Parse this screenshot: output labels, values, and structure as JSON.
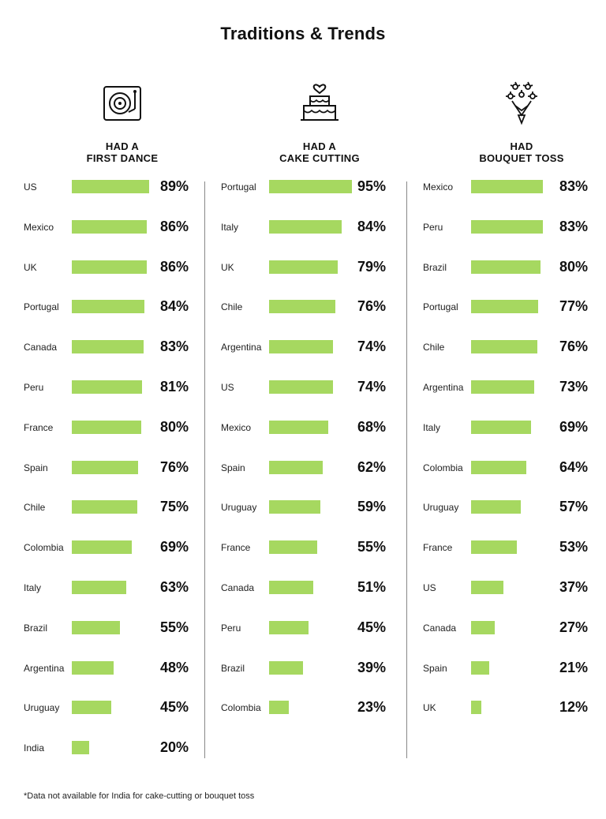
{
  "title": "Traditions & Trends",
  "footnote": "*Data not available for India for cake-cutting or bouquet toss",
  "chart_data": [
    {
      "type": "bar",
      "orientation": "horizontal",
      "icon": "turntable-icon",
      "heading": [
        "HAD A",
        "FIRST DANCE"
      ],
      "unit": "%",
      "xlim": [
        0,
        100
      ],
      "categories": [
        "US",
        "Mexico",
        "UK",
        "Portugal",
        "Canada",
        "Peru",
        "France",
        "Spain",
        "Chile",
        "Colombia",
        "Italy",
        "Brazil",
        "Argentina",
        "Uruguay",
        "India"
      ],
      "values": [
        89,
        86,
        86,
        84,
        83,
        81,
        80,
        76,
        75,
        69,
        63,
        55,
        48,
        45,
        20
      ],
      "labels": [
        "89%",
        "86%",
        "86%",
        "84%",
        "83%",
        "81%",
        "80%",
        "76%",
        "75%",
        "69%",
        "63%",
        "55%",
        "48%",
        "45%",
        "20%"
      ]
    },
    {
      "type": "bar",
      "orientation": "horizontal",
      "icon": "cake-icon",
      "heading": [
        "HAD A",
        "CAKE CUTTING"
      ],
      "unit": "%",
      "xlim": [
        0,
        100
      ],
      "categories": [
        "Portugal",
        "Italy",
        "UK",
        "Chile",
        "Argentina",
        "US",
        "Mexico",
        "Spain",
        "Uruguay",
        "France",
        "Canada",
        "Peru",
        "Brazil",
        "Colombia"
      ],
      "values": [
        95,
        84,
        79,
        76,
        74,
        74,
        68,
        62,
        59,
        55,
        51,
        45,
        39,
        23
      ],
      "labels": [
        "95%",
        "84%",
        "79%",
        "76%",
        "74%",
        "74%",
        "68%",
        "62%",
        "59%",
        "55%",
        "51%",
        "45%",
        "39%",
        "23%"
      ]
    },
    {
      "type": "bar",
      "orientation": "horizontal",
      "icon": "bouquet-icon",
      "heading": [
        "HAD",
        "BOUQUET TOSS"
      ],
      "unit": "%",
      "xlim": [
        0,
        100
      ],
      "categories": [
        "Mexico",
        "Peru",
        "Brazil",
        "Portugal",
        "Chile",
        "Argentina",
        "Italy",
        "Colombia",
        "Uruguay",
        "France",
        "US",
        "Canada",
        "Spain",
        "UK"
      ],
      "values": [
        83,
        83,
        80,
        77,
        76,
        73,
        69,
        64,
        57,
        53,
        37,
        27,
        21,
        12
      ],
      "labels": [
        "83%",
        "83%",
        "80%",
        "77%",
        "76%",
        "73%",
        "69%",
        "64%",
        "57%",
        "53%",
        "37%",
        "27%",
        "21%",
        "12%"
      ]
    }
  ],
  "colors": {
    "bar": "#a6d860",
    "divider": "#888888",
    "text": "#111111"
  }
}
